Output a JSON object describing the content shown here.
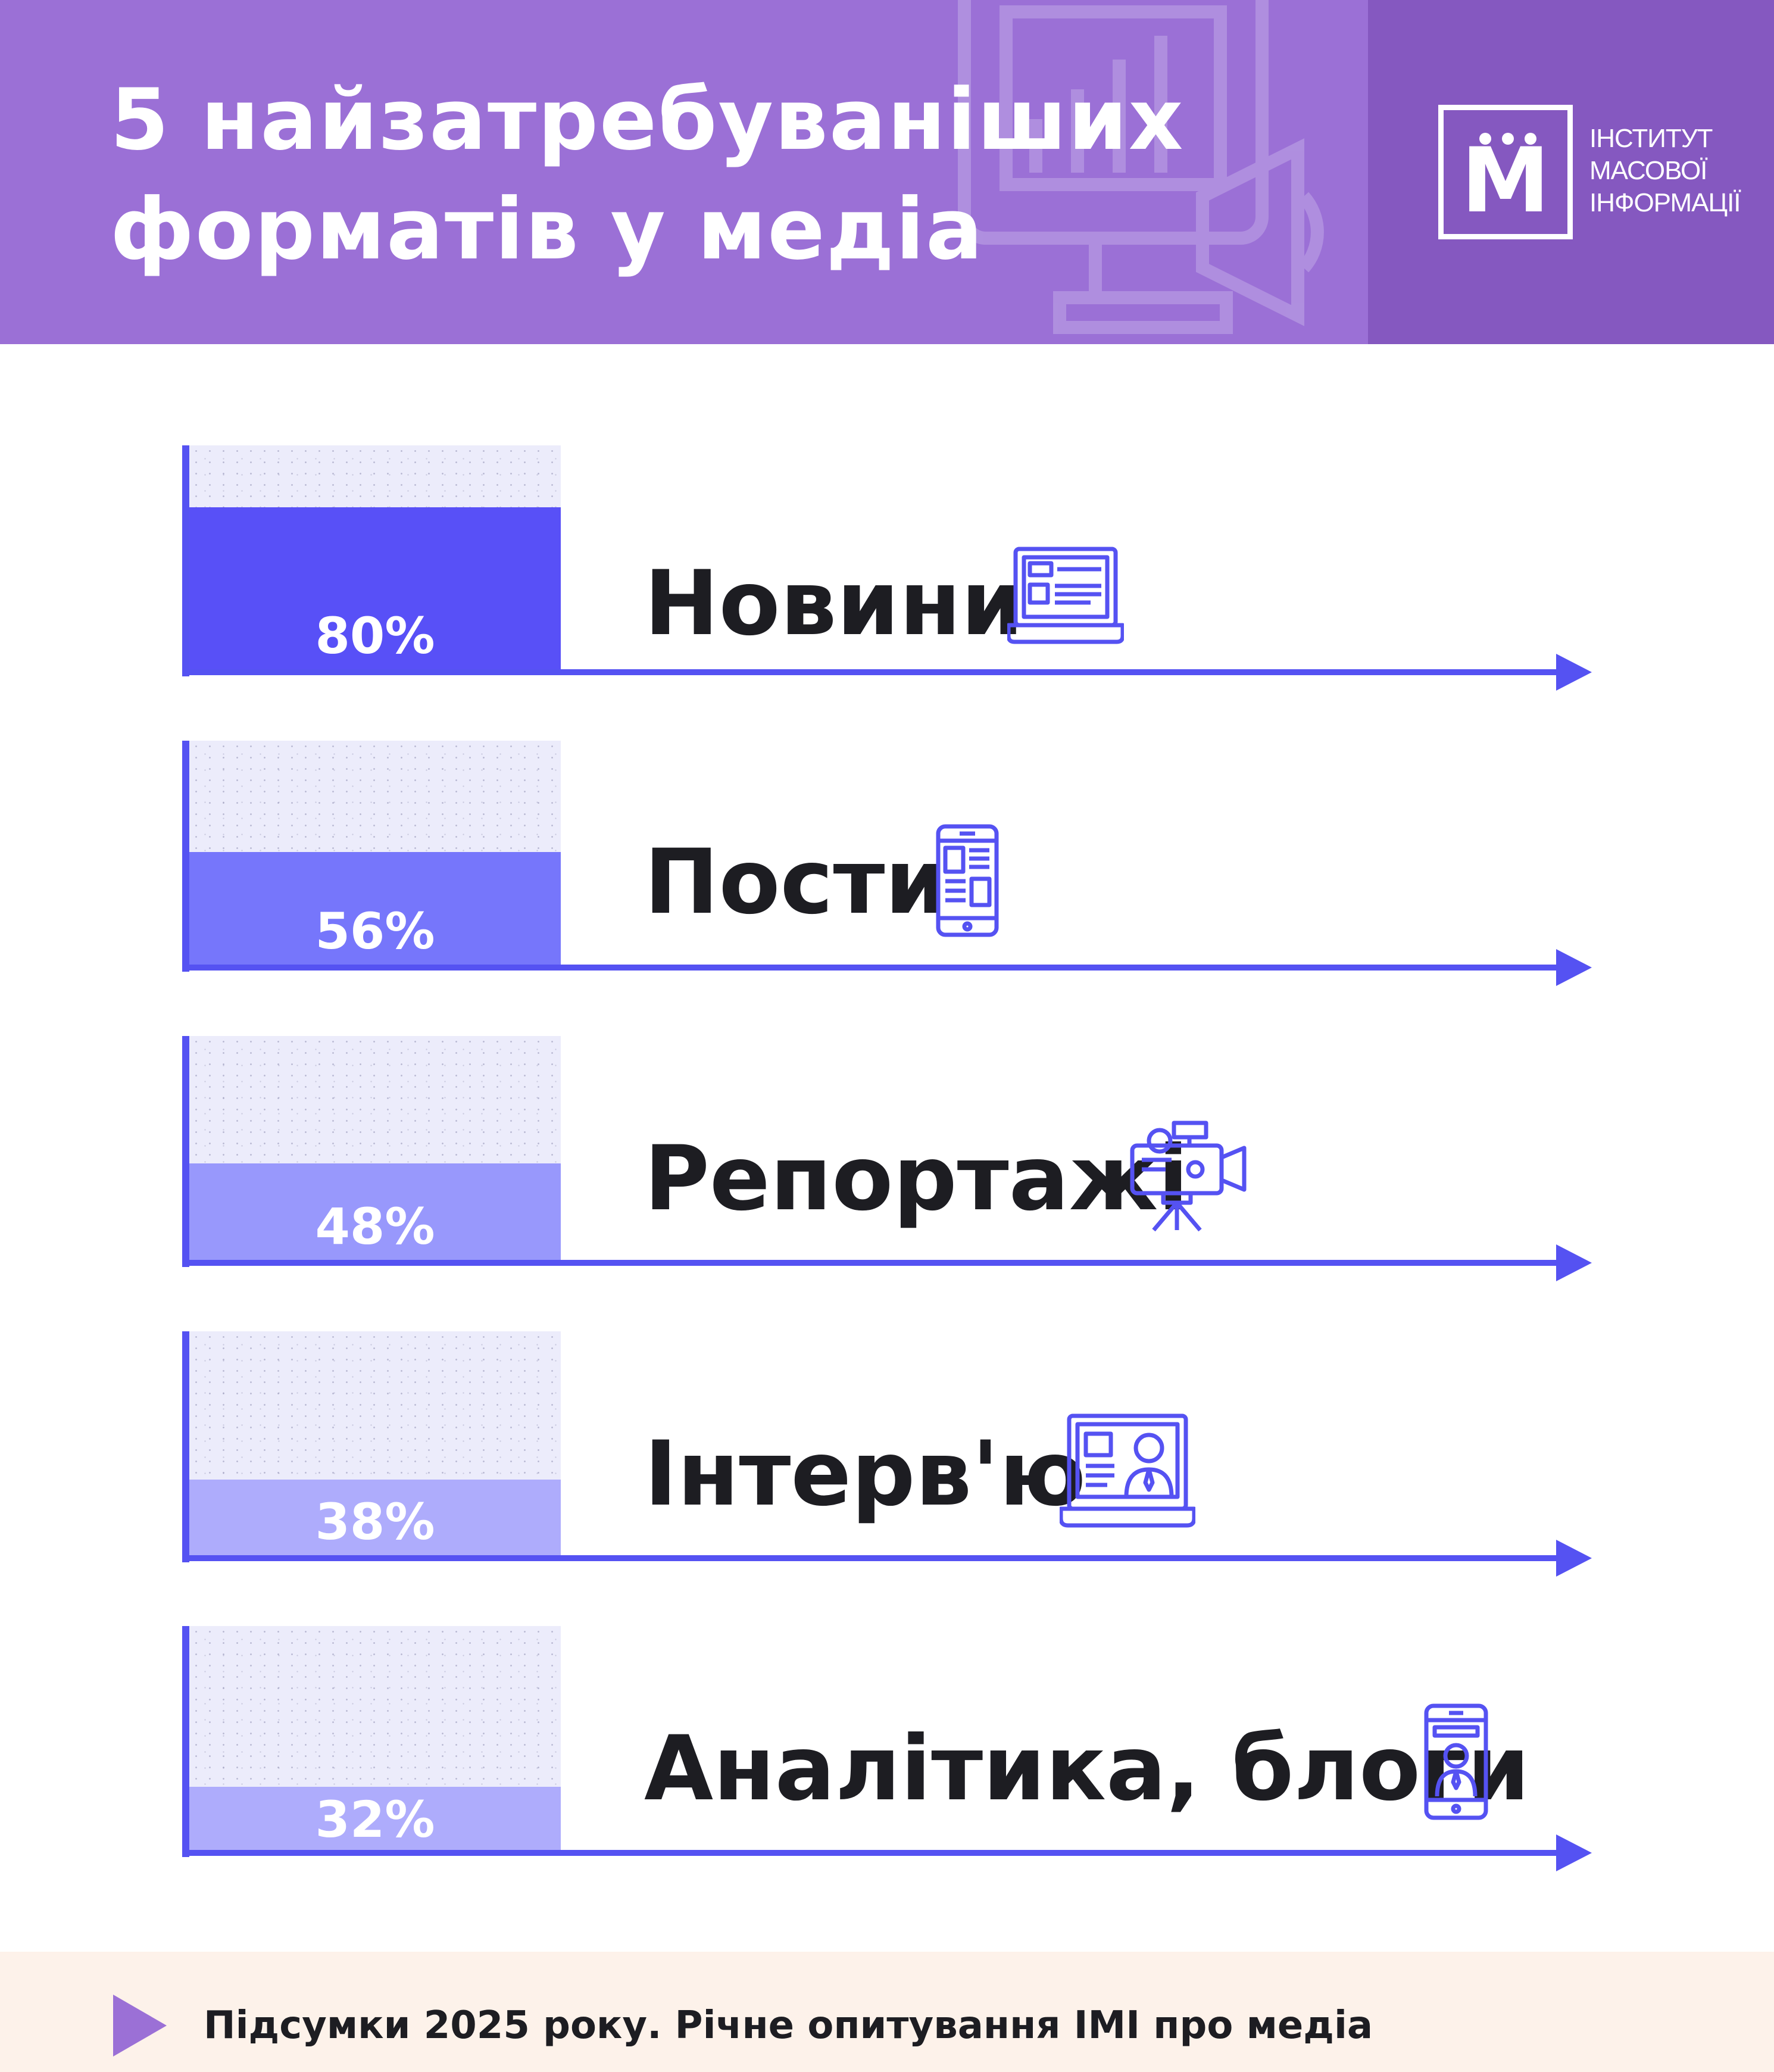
{
  "header": {
    "title_lines": [
      "5 найзатребуваніших",
      "форматів у медіа"
    ],
    "logo_letter": "М",
    "logo_text": [
      "ІНСТИТУТ",
      "МАСОВОЇ",
      "ІНФОРМАЦІЇ"
    ]
  },
  "chart_data": {
    "type": "bar",
    "categories": [
      "Новини",
      "Пости",
      "Репортажі",
      "Інтерв'ю",
      "Аналітика, блоги"
    ],
    "values": [
      80,
      56,
      48,
      38,
      32
    ],
    "value_labels": [
      "80%",
      "56%",
      "48%",
      "38%",
      "32%"
    ],
    "bar_colors": [
      "#5850f7",
      "#7676fb",
      "#9898fc",
      "#aeacfc",
      "#aeacfc"
    ],
    "icons": [
      "laptop-news-icon",
      "smartphone-post-icon",
      "video-camera-icon",
      "monitor-interview-icon",
      "smartphone-person-icon"
    ],
    "ylim": [
      0,
      100
    ],
    "orientation": "vertical-bars-in-rows"
  },
  "colors": {
    "header_bg": "#9b70d6",
    "logo_panel_bg": "#8558c0",
    "axis": "#5552f2",
    "footer_bg": "#fdf2ea"
  },
  "footer": {
    "text": "Підсумки 2025 року. Річне опитування ІМІ про медіа"
  }
}
